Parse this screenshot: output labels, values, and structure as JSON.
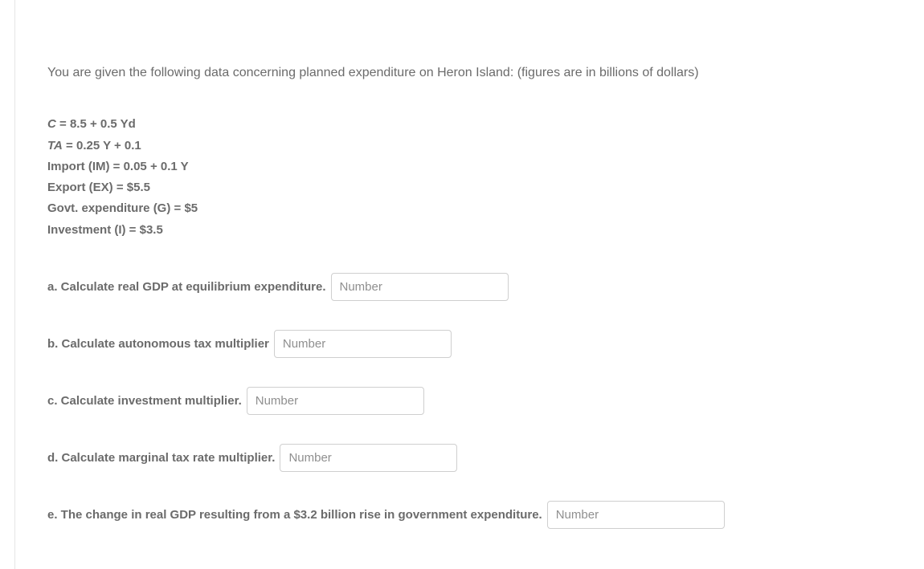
{
  "intro": "You are given the following data concerning planned expenditure on Heron Island:  (figures are in billions of dollars)",
  "equations": {
    "c_line": {
      "lhs_italic": "C",
      "rhs": " = 8.5  +  0.5 Yd"
    },
    "ta_line": {
      "lhs_italic": "TA",
      "rhs": " = 0.25 Y +  0.1"
    },
    "im_line": "Import (IM) = 0.05 +  0.1 Y",
    "ex_line": "Export (EX) = $5.5",
    "g_line": "Govt. expenditure (G) = $5",
    "i_line": "Investment (I) = $3.5"
  },
  "questions": {
    "a": "a. Calculate real GDP at equilibrium expenditure.",
    "b": "b. Calculate autonomous tax multiplier",
    "c": "c. Calculate investment multiplier.",
    "d": "d. Calculate marginal tax rate multiplier.",
    "e": "e. The change in real GDP resulting from a $3.2 billion rise in government expenditure."
  },
  "input_placeholder": "Number",
  "colors": {
    "text": "#6b6b6b",
    "border": "#cfcfcf",
    "placeholder": "#8f8f8f",
    "divider": "#e5e5e5",
    "background": "#ffffff"
  },
  "typography": {
    "body_fontsize": 16,
    "bold_fontsize": 15,
    "font_family": "Arial"
  }
}
